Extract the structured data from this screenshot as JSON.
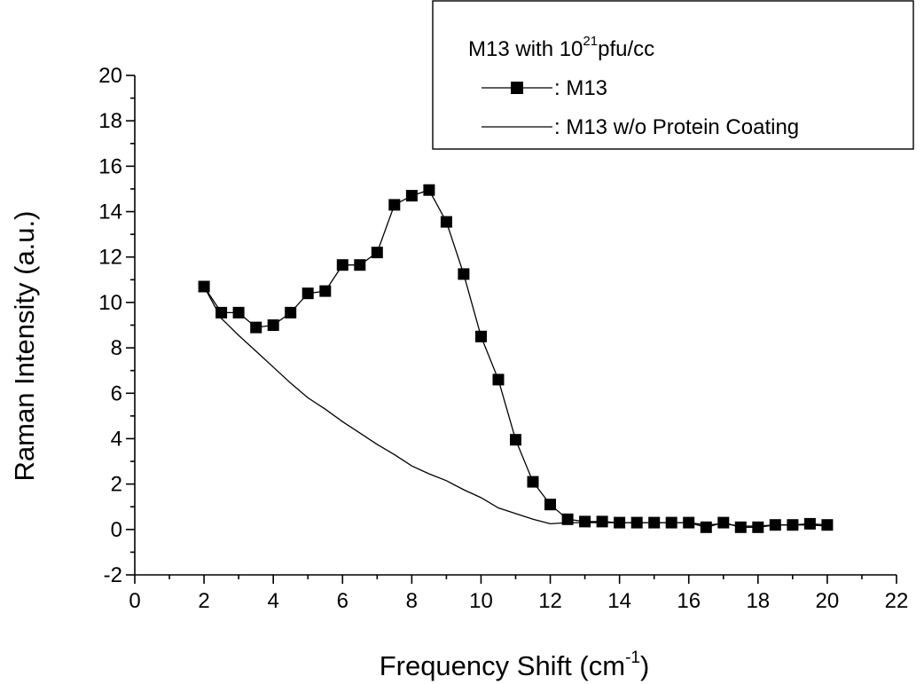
{
  "chart_data": {
    "type": "line",
    "title": "",
    "xlabel": {
      "text": "Frequency Shift (cm",
      "sup": "-1",
      "tail": ")"
    },
    "ylabel": "Raman Intensity (a.u.)",
    "xlim": [
      0,
      22
    ],
    "ylim": [
      -2,
      20
    ],
    "x_ticks": [
      0,
      2,
      4,
      6,
      8,
      10,
      12,
      14,
      16,
      18,
      20,
      22
    ],
    "y_ticks": [
      -2,
      0,
      2,
      4,
      6,
      8,
      10,
      12,
      14,
      16,
      18,
      20
    ],
    "grid": false,
    "legend": {
      "placement": "top-right",
      "title": {
        "text": "M13 with 10",
        "sup": "21",
        "tail": "pfu/cc"
      }
    },
    "series": [
      {
        "name": ": M13",
        "marker": "square",
        "x": [
          2,
          2.5,
          3,
          3.5,
          4,
          4.5,
          5,
          5.5,
          6,
          6.5,
          7,
          7.5,
          8,
          8.5,
          9,
          9.5,
          10,
          10.5,
          11,
          11.5,
          12,
          12.5,
          13,
          13.5,
          14,
          14.5,
          15,
          15.5,
          16,
          16.5,
          17,
          17.5,
          18,
          18.5,
          19,
          19.5,
          20
        ],
        "y": [
          10.7,
          9.55,
          9.55,
          8.9,
          9.0,
          9.55,
          10.4,
          10.5,
          11.65,
          11.65,
          12.2,
          14.3,
          14.7,
          14.95,
          13.55,
          11.25,
          8.5,
          6.6,
          3.95,
          2.1,
          1.1,
          0.45,
          0.35,
          0.35,
          0.3,
          0.3,
          0.3,
          0.3,
          0.3,
          0.1,
          0.3,
          0.1,
          0.1,
          0.2,
          0.2,
          0.25,
          0.2
        ]
      },
      {
        "name": ": M13 w/o Protein Coating",
        "marker": "none",
        "x": [
          2,
          2.5,
          3,
          3.5,
          4,
          4.5,
          5,
          5.5,
          6,
          6.5,
          7,
          7.5,
          8,
          8.5,
          9,
          9.5,
          10,
          10.5,
          11,
          11.5,
          12,
          12.5,
          13,
          13.5,
          14,
          14.5,
          15,
          15.5,
          16,
          16.5,
          17,
          17.5,
          18,
          18.5,
          19,
          19.5,
          20
        ],
        "y": [
          10.7,
          9.3,
          8.55,
          7.85,
          7.15,
          6.45,
          5.8,
          5.3,
          4.75,
          4.25,
          3.75,
          3.3,
          2.8,
          2.45,
          2.15,
          1.75,
          1.4,
          0.95,
          0.7,
          0.45,
          0.25,
          0.3,
          0.3,
          0.3,
          0.3,
          0.3,
          0.3,
          0.3,
          0.3,
          0.2,
          0.25,
          0.15,
          0.15,
          0.2,
          0.2,
          0.2,
          0.15
        ]
      }
    ]
  }
}
